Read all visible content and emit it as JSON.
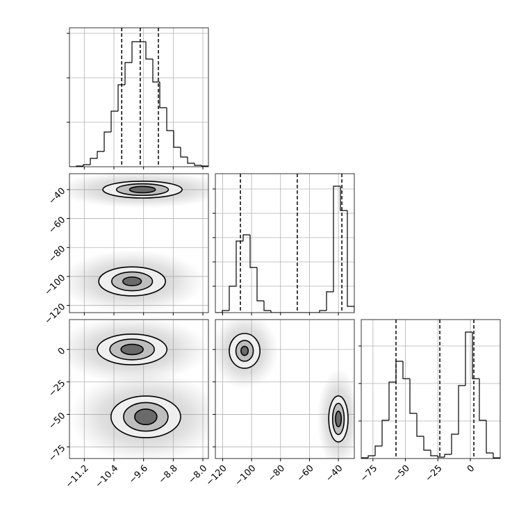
{
  "chart_data": {
    "type": "corner",
    "axes": [
      {
        "lim": [
          -11.6,
          -7.85
        ],
        "ticks": [
          {
            "value": -11.2,
            "label": "−11.2"
          },
          {
            "value": -10.4,
            "label": "−10.4"
          },
          {
            "value": -9.6,
            "label": "−9.6"
          },
          {
            "value": -8.8,
            "label": "−8.8"
          },
          {
            "value": -8,
            "label": "−8.0"
          }
        ]
      },
      {
        "lim": [
          -125,
          -29
        ],
        "ticks": [
          {
            "value": -120,
            "label": "−120"
          },
          {
            "value": -100,
            "label": "−100"
          },
          {
            "value": -80,
            "label": "−80"
          },
          {
            "value": -60,
            "label": "−60"
          },
          {
            "value": -40,
            "label": "−40"
          }
        ]
      },
      {
        "lim": [
          -84,
          23
        ],
        "ticks": [
          {
            "value": -75,
            "label": "−75"
          },
          {
            "value": -50,
            "label": "−50"
          },
          {
            "value": -25,
            "label": "−25"
          },
          0
        ]
      }
    ],
    "histograms": [
      {
        "type": "histogram",
        "bins": [
          -11.6,
          -11.4125,
          -11.225,
          -11.0375,
          -10.85,
          -10.6625,
          -10.475,
          -10.2875,
          -10.1,
          -9.9125,
          -9.725,
          -9.5375,
          -9.35,
          -9.1625,
          -8.975,
          -8.7875,
          -8.6,
          -8.4125,
          -8.225,
          -8.0375,
          -7.85
        ],
        "values": [
          0,
          1,
          3,
          12,
          22,
          50,
          80,
          118,
          150,
          180,
          180,
          155,
          122,
          85,
          52,
          28,
          14,
          5,
          2,
          1
        ],
        "quantiles": [
          -10.19,
          -9.69,
          -9.2
        ],
        "ylim": [
          0,
          200
        ],
        "yticks": [
          64,
          128,
          192
        ]
      },
      {
        "type": "histogram",
        "bins": [
          -125,
          -120.2,
          -115.4,
          -110.6,
          -105.8,
          -101,
          -96.2,
          -91.4,
          -86.6,
          -81.8,
          -77,
          -72.2,
          -67.4,
          -62.6,
          -57.8,
          -53,
          -48.2,
          -43.4,
          -38.6,
          -33.8,
          -29
        ],
        "values": [
          0,
          3,
          38,
          103,
          112,
          65,
          17,
          3,
          0,
          0,
          0,
          0,
          0,
          0,
          0,
          3,
          30,
          182,
          147,
          9
        ],
        "quantiles": [
          -107.7,
          -68.4,
          -37.6
        ],
        "ylim": [
          0,
          200
        ],
        "yticks": [
          38,
          73,
          108,
          143,
          178
        ]
      },
      {
        "type": "histogram",
        "bins": [
          -84,
          -78.65,
          -73.3,
          -67.95,
          -62.6,
          -57.25,
          -51.9,
          -46.55,
          -41.2,
          -35.85,
          -30.5,
          -25.15,
          -19.8,
          -14.45,
          -9.1,
          -3.75,
          1.6,
          6.95,
          12.3,
          17.65,
          23
        ],
        "values": [
          1,
          4,
          18,
          55,
          110,
          140,
          115,
          65,
          32,
          12,
          4,
          2,
          6,
          35,
          105,
          182,
          115,
          55,
          8,
          1
        ],
        "quantiles": [
          -57.25,
          -23.5,
          2.7
        ],
        "ylim": [
          0,
          200
        ],
        "yticks": [
          54,
          108,
          162
        ]
      }
    ],
    "pairs": [
      {
        "type": "contour",
        "clusters": [
          {
            "x": -9.63,
            "y": -40,
            "levels": [
              [
                1.07,
                5.8
              ],
              [
                0.7,
                4
              ],
              [
                0.35,
                2.2
              ]
            ]
          },
          {
            "x": -9.91,
            "y": -103.4,
            "levels": [
              [
                0.9,
                10
              ],
              [
                0.55,
                6.5
              ],
              [
                0.25,
                3
              ]
            ]
          }
        ]
      },
      {
        "type": "contour",
        "clusters": [
          {
            "x": -9.91,
            "y": 0,
            "levels": [
              [
                0.94,
                11.8
              ],
              [
                0.6,
                8
              ],
              [
                0.3,
                4
              ]
            ]
          },
          {
            "x": -9.54,
            "y": -51.9,
            "levels": [
              [
                0.94,
                16
              ],
              [
                0.6,
                11
              ],
              [
                0.3,
                6
              ]
            ]
          }
        ]
      },
      {
        "type": "contour",
        "clusters": [
          {
            "x": -104.8,
            "y": -1.1,
            "levels": [
              [
                10.6,
                13.4
              ],
              [
                6,
                8
              ],
              [
                2.5,
                3.5
              ]
            ]
          },
          {
            "x": -40,
            "y": -53.5,
            "levels": [
              [
                6.7,
                17.7
              ],
              [
                4,
                12
              ],
              [
                2,
                6
              ]
            ]
          }
        ]
      }
    ]
  }
}
